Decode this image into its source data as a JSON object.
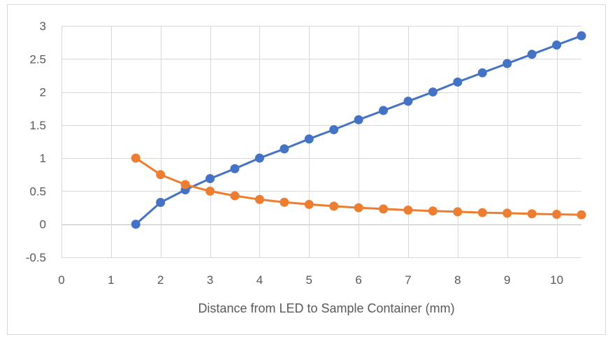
{
  "chart_data": {
    "type": "line",
    "title": "",
    "xlabel": "Distance from LED to Sample Container (mm)",
    "ylabel": "",
    "xlim": [
      0,
      10.5
    ],
    "ylim": [
      -0.5,
      3
    ],
    "xticks": [
      "0",
      "1",
      "2",
      "3",
      "4",
      "5",
      "6",
      "7",
      "8",
      "9",
      "10"
    ],
    "yticks": [
      "-0.5",
      "0",
      "0.5",
      "1",
      "1.5",
      "2",
      "2.5",
      "3"
    ],
    "grid": true,
    "legend": "none",
    "x": [
      1.5,
      2,
      2.5,
      3,
      3.5,
      4,
      4.5,
      5,
      5.5,
      6,
      6.5,
      7,
      7.5,
      8,
      8.5,
      9,
      9.5,
      10,
      10.5
    ],
    "series": [
      {
        "color": "#4472C4",
        "values": [
          0,
          0.33,
          0.52,
          0.69,
          0.84,
          1.0,
          1.14,
          1.29,
          1.43,
          1.58,
          1.72,
          1.86,
          2.0,
          2.15,
          2.29,
          2.43,
          2.57,
          2.71,
          2.85
        ]
      },
      {
        "color": "#ED7D31",
        "values": [
          1.0,
          0.75,
          0.6,
          0.5,
          0.43,
          0.375,
          0.333,
          0.3,
          0.273,
          0.25,
          0.231,
          0.214,
          0.2,
          0.188,
          0.176,
          0.167,
          0.158,
          0.15,
          0.143
        ]
      }
    ]
  }
}
